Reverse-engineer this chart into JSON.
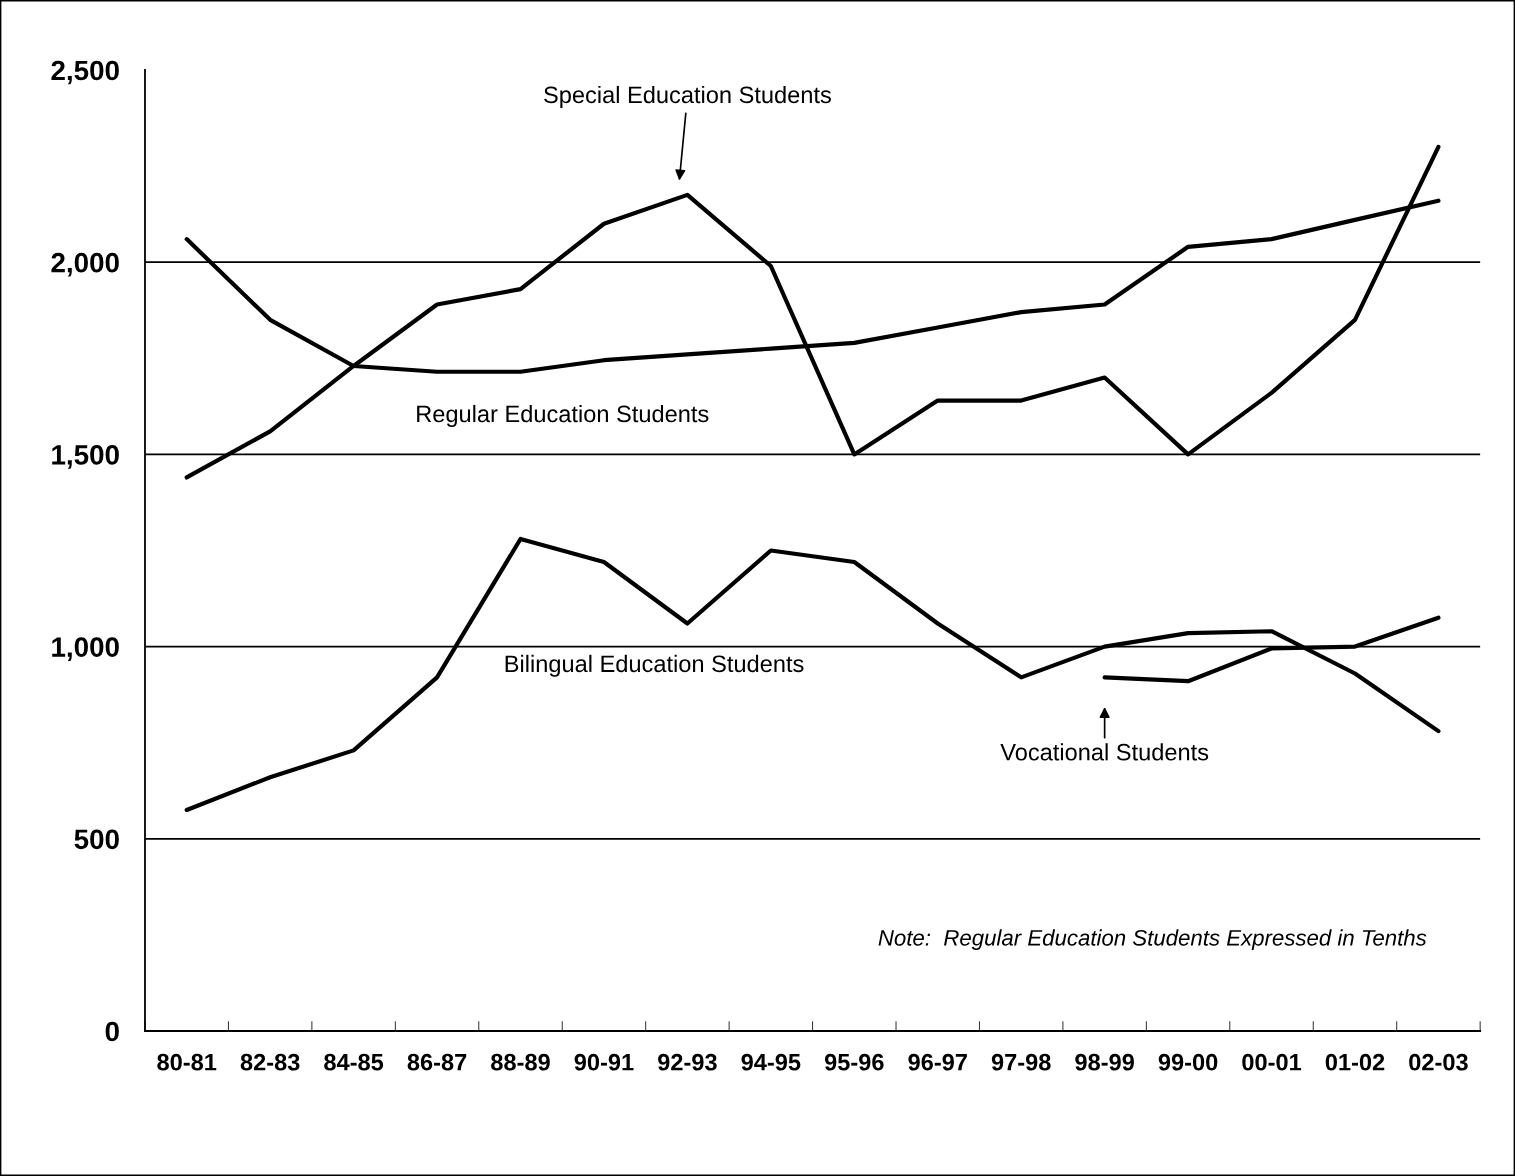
{
  "chart_data": {
    "type": "line",
    "categories": [
      "80-81",
      "82-83",
      "84-85",
      "86-87",
      "88-89",
      "90-91",
      "92-93",
      "94-95",
      "95-96",
      "96-97",
      "97-98",
      "98-99",
      "99-00",
      "00-01",
      "01-02",
      "02-03"
    ],
    "series": [
      {
        "name": "Special Education Students",
        "color": "#000000",
        "values": [
          1440,
          1560,
          1730,
          1890,
          1930,
          2100,
          2175,
          1990,
          1500,
          1640,
          1640,
          1700,
          1500,
          1660,
          1850,
          2300
        ]
      },
      {
        "name": "Regular Education Students",
        "color": "#000000",
        "values": [
          2060,
          1850,
          1730,
          1715,
          1715,
          1745,
          1760,
          1775,
          1790,
          1830,
          1870,
          1890,
          2040,
          2060,
          2110,
          2160
        ]
      },
      {
        "name": "Bilingual Education Students",
        "color": "#000000",
        "values": [
          575,
          660,
          730,
          920,
          1280,
          1220,
          1060,
          1250,
          1220,
          1060,
          920,
          1000,
          1035,
          1040,
          930,
          780
        ]
      },
      {
        "name": "Vocational Students",
        "color": "#000000",
        "values": [
          null,
          null,
          null,
          null,
          null,
          null,
          null,
          null,
          null,
          null,
          null,
          920,
          910,
          995,
          1000,
          1075
        ]
      }
    ],
    "ylim": [
      0,
      2500
    ],
    "yticks": [
      0,
      {
        "value": 500,
        "label": "500"
      },
      {
        "value": 1000,
        "label": "1,000"
      },
      {
        "value": 1500,
        "label": "1,500"
      },
      {
        "value": 2000,
        "label": "2,000"
      },
      {
        "value": 2500,
        "label": "2,500"
      }
    ],
    "grid": "y",
    "line_style": "solid",
    "marker": "none",
    "annotations": [
      "Note:  Regular Education Students Expressed in Tenths"
    ]
  }
}
